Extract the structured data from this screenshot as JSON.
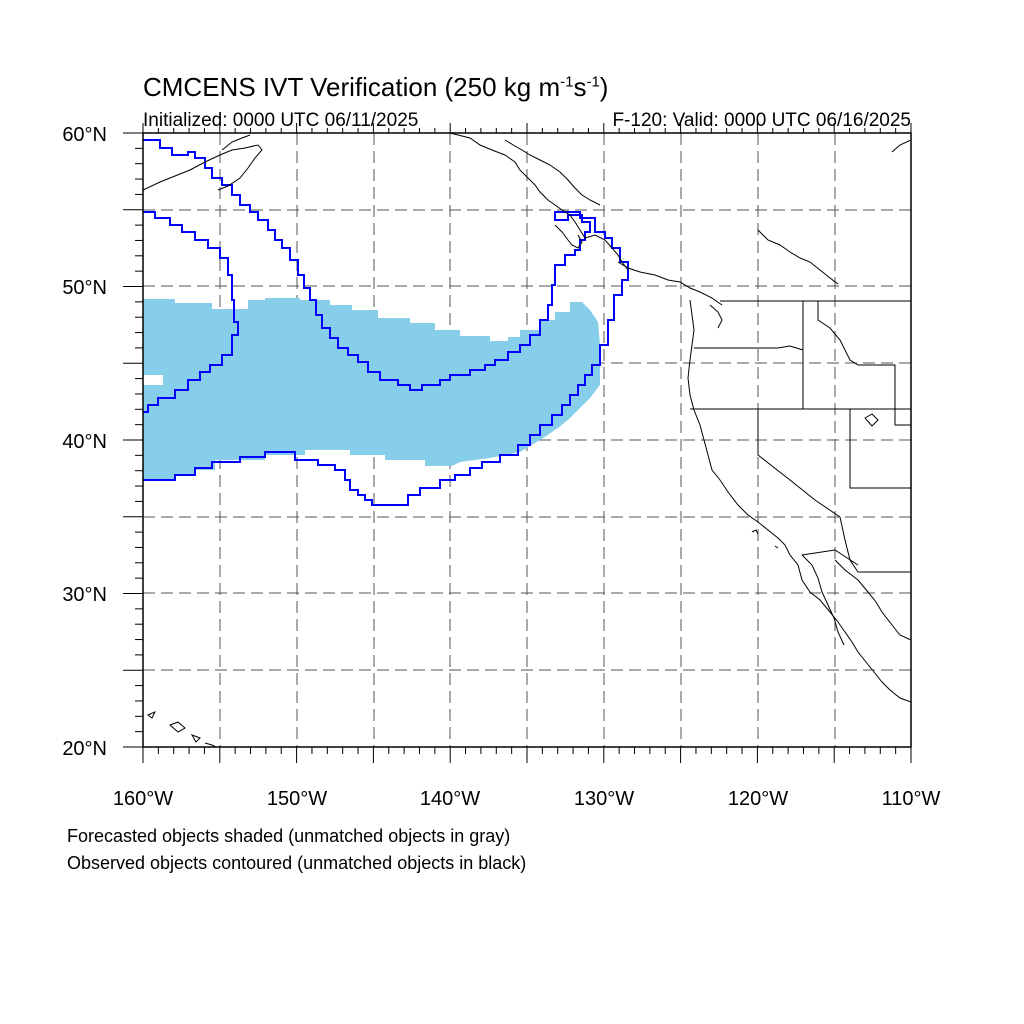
{
  "header": {
    "title": "CMCENS IVT Verification (250 kg m",
    "title_sup1": "-1",
    "title_mid": "s",
    "title_sup2": "-1",
    "title_end": ")",
    "initialized": "Initialized: 0000 UTC 06/11/2025",
    "valid": "F-120: Valid: 0000 UTC 06/16/2025"
  },
  "map": {
    "lon_range": [
      -160,
      -110
    ],
    "lat_range": [
      20,
      60
    ],
    "lat_labels": [
      "60°N",
      "50°N",
      "40°N",
      "30°N",
      "20°N"
    ],
    "lon_labels": [
      "160°W",
      "150°W",
      "140°W",
      "130°W",
      "120°W",
      "110°W"
    ],
    "grid": "dashed every 5°",
    "colors": {
      "forecast_fill": "#87ceeb",
      "observed_contour": "#0000ff",
      "coastline": "#000000"
    }
  },
  "notes": {
    "line1": "Forecasted objects shaded (unmatched objects in gray)",
    "line2": "Observed objects contoured (unmatched objects in black)"
  }
}
